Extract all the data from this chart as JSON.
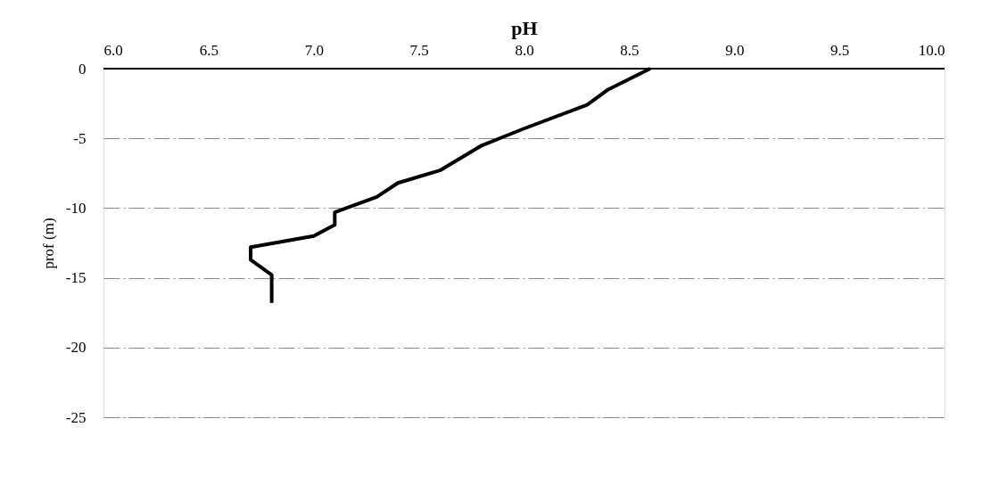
{
  "chart_data": {
    "type": "line",
    "xlabel": "pH",
    "ylabel": "prof (m)",
    "series": [
      {
        "color": "#000000",
        "x": [
          8.6,
          8.4,
          8.3,
          8.0,
          7.8,
          7.6,
          7.4,
          7.3,
          7.1,
          7.1,
          7.0,
          6.7,
          6.7,
          6.8,
          6.8
        ],
        "values": [
          0,
          -1.5,
          -2.6,
          -4.3,
          -5.5,
          -7.3,
          -8.2,
          -9.2,
          -10.3,
          -11.2,
          -12.0,
          -12.8,
          -13.7,
          -14.8,
          -16.8
        ]
      }
    ],
    "xlim": [
      6,
      10
    ],
    "xticks": [
      {
        "value": 6,
        "label": "6.0"
      },
      {
        "value": 6.5,
        "label": "6.5"
      },
      {
        "value": 7,
        "label": "7.0"
      },
      {
        "value": 7.5,
        "label": "7.5"
      },
      {
        "value": 8,
        "label": "8.0"
      },
      {
        "value": 8.5,
        "label": "8.5"
      },
      {
        "value": 9,
        "label": "9.0"
      },
      {
        "value": 9.5,
        "label": "9.5"
      },
      {
        "value": 10,
        "label": "10.0"
      }
    ],
    "ylim": [
      -25,
      0
    ],
    "yticks": [
      0,
      -5,
      -10,
      -15,
      -20,
      -25
    ],
    "grid": "y",
    "line_style": "solid",
    "marker": "none",
    "legend": false
  }
}
